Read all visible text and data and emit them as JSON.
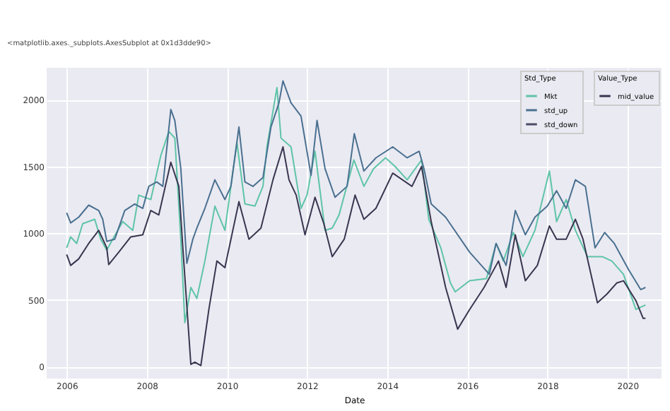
{
  "chart_data": {
    "type": "line",
    "xlabel": "Date",
    "legend_title": "Std_Type",
    "legend": "top right",
    "grid": true,
    "annotations": [
      "<matplotlib.axes._subplots.AxesSubplot at 0x1d3dde90>",
      "Value_Type"
    ],
    "xlim": [
      2005.5,
      2020.85
    ],
    "xticks": [
      2006,
      2008,
      2010,
      2012,
      2014,
      2016,
      2018,
      2020
    ],
    "ylim": [
      -90,
      2240
    ],
    "yticks": [
      0,
      500,
      1000,
      1500,
      2000
    ],
    "series": [
      {
        "name": "Mkt",
        "color": "#5ec4a8",
        "x": [
          2006,
          2006.1,
          2006.25,
          2006.4,
          2006.7,
          2006.85,
          2007.0,
          2007.15,
          2007.4,
          2007.65,
          2007.8,
          2008.1,
          2008.35,
          2008.55,
          2008.7,
          2008.85,
          2008.95,
          2009.1,
          2009.25,
          2009.45,
          2009.7,
          2009.95,
          2010.25,
          2010.45,
          2010.7,
          2010.9,
          2011.0,
          2011.25,
          2011.35,
          2011.6,
          2011.85,
          2012.0,
          2012.2,
          2012.45,
          2012.63,
          2012.8,
          2013.17,
          2013.42,
          2013.66,
          2013.96,
          2014.2,
          2014.5,
          2014.86,
          2015.04,
          2015.34,
          2015.58,
          2015.7,
          2016.06,
          2016.48,
          2016.72,
          2016.9,
          2017.15,
          2017.39,
          2017.69,
          2018.05,
          2018.23,
          2018.47,
          2018.7,
          2019.0,
          2019.37,
          2019.61,
          2019.9,
          2020.21,
          2020.45
        ],
        "values": [
          890,
          972,
          923,
          1071,
          1104,
          955,
          873,
          955,
          1087,
          1021,
          1285,
          1252,
          1582,
          1763,
          1713,
          955,
          329,
          593,
          511,
          791,
          1203,
          1021,
          1680,
          1219,
          1203,
          1351,
          1647,
          2092,
          1713,
          1647,
          1186,
          1285,
          1614,
          1021,
          1038,
          1137,
          1549,
          1351,
          1483,
          1565,
          1500,
          1400,
          1549,
          1104,
          890,
          626,
          560,
          643,
          659,
          923,
          791,
          1005,
          824,
          1021,
          1466,
          1087,
          1252,
          1021,
          824,
          824,
          791,
          692,
          428,
          461
        ]
      },
      {
        "name": "std_up",
        "color": "#4a7090",
        "x": [
          2006,
          2006.1,
          2006.3,
          2006.55,
          2006.8,
          2006.9,
          2007.0,
          2007.2,
          2007.45,
          2007.7,
          2007.9,
          2008.05,
          2008.25,
          2008.4,
          2008.6,
          2008.7,
          2008.85,
          2009.0,
          2009.15,
          2009.25,
          2009.45,
          2009.7,
          2009.95,
          2010.1,
          2010.3,
          2010.45,
          2010.65,
          2010.9,
          2011.1,
          2011.3,
          2011.4,
          2011.6,
          2011.85,
          2012.1,
          2012.25,
          2012.45,
          2012.7,
          2013.0,
          2013.18,
          2013.42,
          2013.72,
          2014.14,
          2014.5,
          2014.8,
          2014.92,
          2015.1,
          2015.46,
          2016.06,
          2016.55,
          2016.72,
          2016.97,
          2017.2,
          2017.45,
          2017.69,
          2018.0,
          2018.23,
          2018.47,
          2018.7,
          2018.95,
          2019.19,
          2019.43,
          2019.67,
          2020.03,
          2020.33,
          2020.45
        ],
        "values": [
          1153,
          1077,
          1120,
          1210,
          1170,
          1104,
          939,
          955,
          1170,
          1219,
          1186,
          1351,
          1384,
          1351,
          1927,
          1845,
          1483,
          774,
          955,
          1038,
          1186,
          1400,
          1252,
          1351,
          1796,
          1384,
          1351,
          1417,
          1796,
          1977,
          2142,
          1977,
          1878,
          1433,
          1845,
          1483,
          1269,
          1351,
          1746,
          1466,
          1565,
          1647,
          1565,
          1614,
          1483,
          1219,
          1120,
          857,
          692,
          923,
          758,
          1170,
          988,
          1120,
          1203,
          1318,
          1186,
          1400,
          1351,
          890,
          1005,
          923,
          725,
          577,
          593
        ]
      },
      {
        "name": "std_down",
        "color": "#4b4a66"
      },
      {
        "name": "mid_value",
        "color": "#3a3550",
        "x": [
          2006,
          2006.1,
          2006.3,
          2006.55,
          2006.8,
          2007.0,
          2007.05,
          2007.3,
          2007.6,
          2007.9,
          2008.1,
          2008.3,
          2008.6,
          2008.8,
          2008.9,
          2009.1,
          2009.2,
          2009.35,
          2009.55,
          2009.75,
          2009.95,
          2010.3,
          2010.55,
          2010.85,
          2011.15,
          2011.4,
          2011.55,
          2011.73,
          2011.95,
          2012.2,
          2012.42,
          2012.63,
          2012.93,
          2013.2,
          2013.42,
          2013.72,
          2014.14,
          2014.62,
          2014.86,
          2015.1,
          2015.46,
          2015.76,
          2016.06,
          2016.42,
          2016.78,
          2016.97,
          2017.2,
          2017.45,
          2017.75,
          2018.05,
          2018.23,
          2018.47,
          2018.7,
          2018.89,
          2019.25,
          2019.49,
          2019.73,
          2019.9,
          2020.21,
          2020.39,
          2020.45
        ],
        "values": [
          840,
          758,
          807,
          923,
          1021,
          890,
          764,
          857,
          972,
          988,
          1170,
          1137,
          1532,
          1351,
          890,
          16,
          33,
          7,
          428,
          791,
          741,
          1236,
          955,
          1038,
          1400,
          1647,
          1400,
          1285,
          988,
          1269,
          1071,
          824,
          955,
          1285,
          1104,
          1186,
          1450,
          1351,
          1500,
          1087,
          593,
          280,
          428,
          593,
          791,
          593,
          988,
          643,
          758,
          1054,
          955,
          955,
          1104,
          955,
          478,
          544,
          626,
          643,
          494,
          362,
          362
        ]
      }
    ]
  }
}
